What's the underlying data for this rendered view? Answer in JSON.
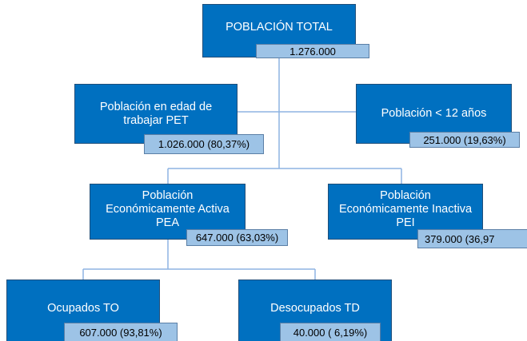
{
  "nodes": [
    {
      "label": "POBLACIÓN TOTAL",
      "value": "1.276.000"
    },
    {
      "label": "Población en edad de trabajar PET",
      "value": "1.026.000 (80,37%)"
    },
    {
      "label": "Población < 12 años",
      "value": "251.000 (19,63%)"
    },
    {
      "label": "Población Económicamente Activa PEA",
      "value": "647.000 (63,03%)"
    },
    {
      "label": "Población Económicamente Inactiva PEI",
      "value": "379.000 (36,97"
    },
    {
      "label": "Ocupados TO",
      "value": "607.000 (93,81%)"
    },
    {
      "label": "Desocupados TD",
      "value": "40.000 ( 6,19%)"
    }
  ]
}
